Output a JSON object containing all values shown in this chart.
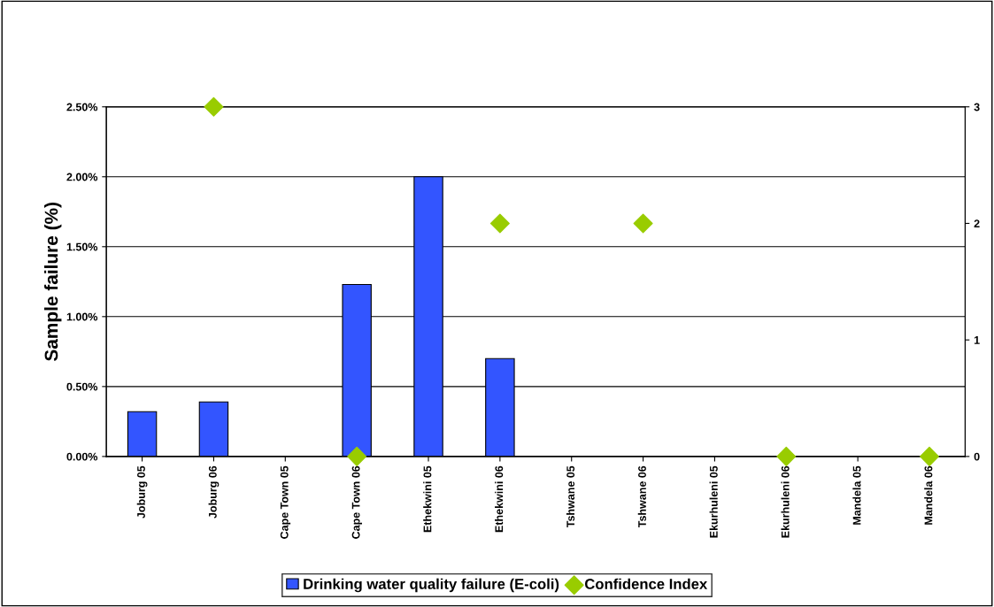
{
  "chart_data": {
    "type": "bar",
    "ylabel": "Sample failure (%)",
    "categories": [
      "Joburg 05",
      "Joburg 06",
      "Cape Town 05",
      "Cape Town 06",
      "Ethekwini 05",
      "Ethekwini 06",
      "Tshwane 05",
      "Tshwane 06",
      "Ekurhuleni 05",
      "Ekurhuleni 06",
      "Mandela 05",
      "Mandela 06"
    ],
    "series": [
      {
        "name": "Drinking water quality failure (E-coli)",
        "color": "#3355ff",
        "values": [
          0.32,
          0.39,
          null,
          1.23,
          2.0,
          0.7,
          null,
          null,
          null,
          null,
          null,
          null
        ]
      },
      {
        "name": "Confidence Index",
        "type": "scatter",
        "axis": "y2",
        "marker": "diamond",
        "color": "#99cc00",
        "values": [
          null,
          3,
          null,
          0,
          null,
          2,
          null,
          2,
          null,
          0,
          null,
          0
        ]
      }
    ],
    "ylim": [
      0,
      2.5
    ],
    "yticks": [
      {
        "value": 0,
        "label": "0.00%"
      },
      {
        "value": 0.5,
        "label": "0.50%"
      },
      {
        "value": 1.0,
        "label": "1.00%"
      },
      {
        "value": 1.5,
        "label": "1.50%"
      },
      {
        "value": 2.0,
        "label": "2.00%"
      },
      {
        "value": 2.5,
        "label": "2.50%"
      }
    ],
    "y2lim": [
      0,
      3
    ],
    "y2ticks": [
      0,
      1,
      2,
      3
    ],
    "grid": "y",
    "legend": "bottom"
  }
}
